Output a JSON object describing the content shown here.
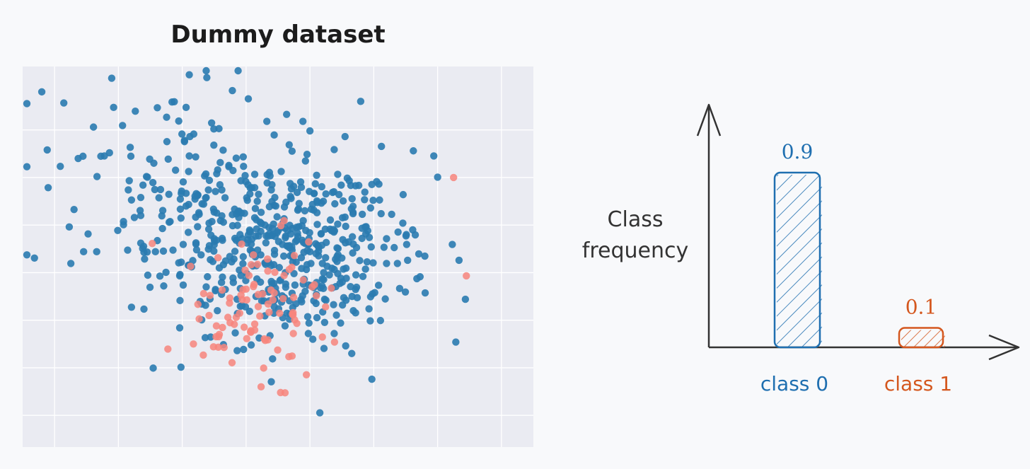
{
  "colors": {
    "class0": "#1f6fb0",
    "class1": "#d4571e",
    "scatter_class0": "#2a7bb0",
    "scatter_class1": "#f7857c",
    "plot_bg": "#eaebf2",
    "grid": "#ffffff",
    "axis": "#333333"
  },
  "chart_data": [
    {
      "type": "scatter",
      "title": "Dummy dataset",
      "xlabel": "",
      "ylabel": "",
      "xlim": [
        -8,
        8
      ],
      "ylim": [
        -6,
        6
      ],
      "grid": true,
      "series": [
        {
          "class": 0,
          "points": []
        },
        {
          "class": 1,
          "points": []
        }
      ]
    },
    {
      "type": "bar",
      "ylabel": "Class frequency",
      "categories": [
        "class 0",
        "class 1"
      ],
      "values": [
        0.9,
        0.1
      ],
      "value_labels": [
        "0.9",
        "0.1"
      ],
      "ylim": [
        0,
        1.25
      ],
      "grid": false
    }
  ]
}
